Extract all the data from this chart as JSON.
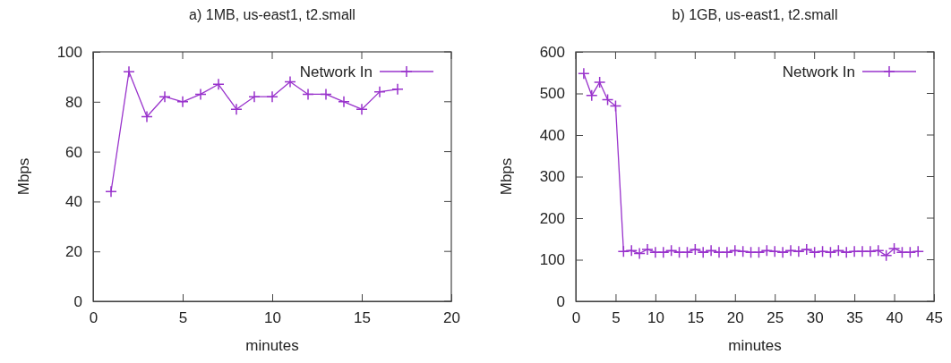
{
  "chart_data": [
    {
      "type": "line",
      "title": "a) 1MB, us-east1, t2.small",
      "xlabel": "minutes",
      "ylabel": "Mbps",
      "x": [
        1,
        2,
        3,
        4,
        5,
        6,
        7,
        8,
        9,
        10,
        11,
        12,
        13,
        14,
        15,
        16,
        17
      ],
      "series": [
        {
          "name": "Network In",
          "color": "#9933cc",
          "values": [
            44,
            92,
            74,
            82,
            80,
            83,
            87,
            77,
            82,
            82,
            88,
            83,
            83,
            80,
            77,
            84,
            85
          ]
        }
      ],
      "xlim": [
        0,
        20
      ],
      "xticks": [
        0,
        5,
        10,
        15,
        20
      ],
      "ylim": [
        0,
        100
      ],
      "yticks": [
        0,
        20,
        40,
        60,
        80,
        100
      ],
      "marker": "cross",
      "legend": "top right",
      "grid": false
    },
    {
      "type": "line",
      "title": "b) 1GB, us-east1, t2.small",
      "xlabel": "minutes",
      "ylabel": "Mbps",
      "x": [
        1,
        2,
        3,
        4,
        5,
        6,
        7,
        8,
        9,
        10,
        11,
        12,
        13,
        14,
        15,
        16,
        17,
        18,
        19,
        20,
        21,
        22,
        23,
        24,
        25,
        26,
        27,
        28,
        29,
        30,
        31,
        32,
        33,
        34,
        35,
        36,
        37,
        38,
        39,
        40,
        41,
        42,
        43
      ],
      "series": [
        {
          "name": "Network In",
          "color": "#9933cc",
          "values": [
            548,
            495,
            527,
            485,
            470,
            120,
            122,
            115,
            125,
            118,
            118,
            122,
            118,
            118,
            125,
            118,
            122,
            118,
            118,
            122,
            120,
            118,
            118,
            122,
            120,
            118,
            122,
            120,
            125,
            118,
            120,
            118,
            122,
            118,
            120,
            120,
            120,
            122,
            110,
            127,
            118,
            118,
            120
          ]
        }
      ],
      "xlim": [
        0,
        45
      ],
      "xticks": [
        0,
        5,
        10,
        15,
        20,
        25,
        30,
        35,
        40,
        45
      ],
      "ylim": [
        0,
        600
      ],
      "yticks": [
        0,
        100,
        200,
        300,
        400,
        500,
        600
      ],
      "marker": "cross",
      "legend": "top right",
      "grid": false
    }
  ]
}
